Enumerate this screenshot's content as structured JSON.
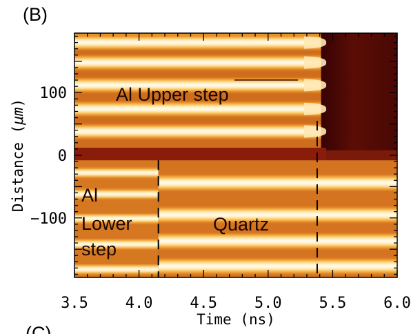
{
  "panel_label": "(B)",
  "next_panel_label": "(C)",
  "chart_data": {
    "type": "heatmap",
    "xlabel": "Time (ns)",
    "ylabel_text": "Distance (",
    "ylabel_unit": "μm",
    "ylabel_close": ")",
    "xlim": [
      3.5,
      6.0
    ],
    "ylim": [
      -195,
      195
    ],
    "x_ticks": [
      3.5,
      4.0,
      4.5,
      5.0,
      5.5,
      6.0
    ],
    "x_tick_labels": [
      "3.5",
      "4.0",
      "4.5",
      "5.0",
      "5.5",
      "6.0"
    ],
    "y_ticks": [
      100,
      0,
      -100
    ],
    "y_tick_labels": [
      "100",
      "0",
      "−100"
    ],
    "colormap": [
      "#1c0000",
      "#6b1408",
      "#a8361a",
      "#d2701f",
      "#f0a232",
      "#ffd47a",
      "#fffbea"
    ],
    "upper_step": {
      "y_range": [
        12,
        190
      ],
      "breakout_time_ns": 5.45,
      "fringe_centers_um": [
        180,
        148,
        112,
        74,
        38
      ],
      "after_breakout": "dark"
    },
    "interface_band_um": [
      -8,
      12
    ],
    "quartz": {
      "y_range": [
        -195,
        -8
      ],
      "start_time_ns": 4.15,
      "fringe_centers_um": [
        -44,
        -95,
        -137,
        -177
      ]
    },
    "lower_step": {
      "y_range": [
        -195,
        -8
      ],
      "time_range_ns": [
        3.5,
        4.15
      ],
      "fringe_centers_um": [
        -28,
        -62,
        -101,
        -142,
        -182
      ]
    },
    "dashed_lines": [
      {
        "x": 4.15,
        "y_range": [
          -195,
          -8
        ]
      },
      {
        "x": 5.38,
        "y_range": [
          -195,
          55
        ]
      }
    ],
    "annotations": {
      "upper": "Al Upper step",
      "lower_line1": "Al",
      "lower_line2": "Lower",
      "lower_line3": "step",
      "quartz": "Quartz"
    }
  }
}
